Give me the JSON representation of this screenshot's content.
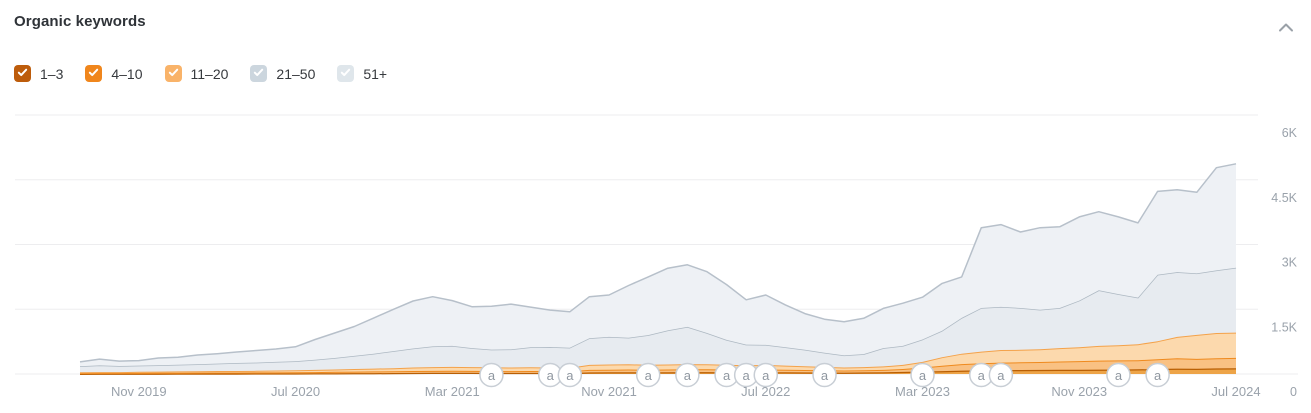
{
  "header": {
    "title": "Organic keywords",
    "collapse_icon": "chevron-up"
  },
  "legend": {
    "items": [
      {
        "key": "1-3",
        "label": "1–3",
        "color": "#bd5c0b",
        "checked": true
      },
      {
        "key": "4-10",
        "label": "4–10",
        "color": "#f0861c",
        "checked": true
      },
      {
        "key": "11-20",
        "label": "11–20",
        "color": "#f9b369",
        "checked": true
      },
      {
        "key": "21-50",
        "label": "21–50",
        "color": "#ccd6de",
        "checked": true
      },
      {
        "key": "51plus",
        "label": "51+",
        "color": "#dfe6eb",
        "checked": true
      }
    ]
  },
  "chart_data": {
    "type": "area",
    "stacked": true,
    "note": "Stacked area of organic keyword counts by ranking position. Series values below are cumulative stack-top values (keywords), monthly from Aug 2019 to Jul 2024.",
    "x_range": {
      "start": "Aug 2019",
      "end": "Jul 2024",
      "interval": "monthly",
      "points": 60
    },
    "ylim": [
      0,
      6000
    ],
    "grid": true,
    "legend_position": "top-left",
    "axes": {
      "y_ticks": [
        {
          "value": 0,
          "label": "0"
        },
        {
          "value": 1500,
          "label": "1.5K"
        },
        {
          "value": 3000,
          "label": "3K"
        },
        {
          "value": 4500,
          "label": "4.5K"
        },
        {
          "value": 6000,
          "label": "6K"
        }
      ],
      "x_ticks": [
        {
          "index": 3,
          "label": "Nov 2019"
        },
        {
          "index": 11,
          "label": "Jul 2020"
        },
        {
          "index": 19,
          "label": "Mar 2021"
        },
        {
          "index": 27,
          "label": "Nov 2021"
        },
        {
          "index": 35,
          "label": "Jul 2022"
        },
        {
          "index": 43,
          "label": "Mar 2023"
        },
        {
          "index": 51,
          "label": "Nov 2023"
        },
        {
          "index": 59,
          "label": "Jul 2024"
        }
      ]
    },
    "series": [
      {
        "key": "1-3",
        "name": "1–3",
        "fill": "#eda448",
        "line": "#b95f04",
        "line_width": 2.5,
        "cumulative_top": [
          8,
          9,
          9,
          10,
          10,
          11,
          11,
          12,
          12,
          13,
          13,
          14,
          16,
          18,
          20,
          22,
          24,
          26,
          27,
          28,
          27,
          26,
          25,
          26,
          25,
          24,
          38,
          40,
          42,
          40,
          42,
          44,
          43,
          42,
          40,
          42,
          39,
          37,
          35,
          33,
          36,
          40,
          48,
          58,
          68,
          78,
          85,
          90,
          92,
          95,
          98,
          100,
          103,
          105,
          108,
          118,
          126,
          122,
          130,
          135
        ]
      },
      {
        "key": "4-10",
        "name": "4–10",
        "fill": "#f9c183",
        "line": "#ef8a1e",
        "line_width": 2,
        "cumulative_top": [
          22,
          24,
          25,
          26,
          28,
          30,
          32,
          34,
          35,
          36,
          38,
          40,
          45,
          50,
          55,
          60,
          65,
          70,
          72,
          74,
          72,
          70,
          68,
          70,
          68,
          66,
          95,
          100,
          105,
          100,
          105,
          110,
          108,
          105,
          100,
          105,
          98,
          92,
          86,
          80,
          85,
          95,
          115,
          150,
          190,
          230,
          250,
          265,
          270,
          278,
          290,
          300,
          310,
          315,
          320,
          340,
          365,
          350,
          365,
          372
        ]
      },
      {
        "key": "11-20",
        "name": "11–20",
        "fill": "#fcd9ad",
        "line": "#f4a24a",
        "line_width": 2,
        "cumulative_top": [
          40,
          45,
          45,
          50,
          55,
          60,
          65,
          70,
          70,
          75,
          80,
          85,
          95,
          105,
          115,
          125,
          135,
          150,
          160,
          165,
          160,
          155,
          150,
          155,
          150,
          145,
          210,
          220,
          225,
          215,
          220,
          230,
          225,
          215,
          205,
          210,
          195,
          180,
          165,
          150,
          160,
          175,
          210,
          280,
          390,
          470,
          520,
          555,
          560,
          575,
          600,
          620,
          650,
          665,
          690,
          760,
          860,
          905,
          950,
          960
        ]
      },
      {
        "key": "21-50",
        "name": "21–50",
        "fill": "#e7ebf0",
        "line": "#adb8c2",
        "line_width": 1.5,
        "cumulative_top": [
          180,
          200,
          185,
          195,
          205,
          215,
          225,
          240,
          255,
          265,
          280,
          295,
          330,
          370,
          420,
          470,
          530,
          590,
          640,
          650,
          600,
          565,
          570,
          620,
          625,
          610,
          830,
          860,
          840,
          900,
          1010,
          1090,
          950,
          790,
          680,
          675,
          620,
          560,
          490,
          430,
          460,
          600,
          650,
          800,
          1000,
          1300,
          1530,
          1555,
          1530,
          1490,
          1530,
          1700,
          1940,
          1850,
          1770,
          2300,
          2360,
          2330,
          2400,
          2460
        ]
      },
      {
        "key": "51plus",
        "name": "51+",
        "fill": "#eef1f5",
        "line": "#b7c0ca",
        "line_width": 1.5,
        "cumulative_top": [
          280,
          345,
          300,
          310,
          370,
          390,
          440,
          470,
          510,
          545,
          580,
          630,
          800,
          950,
          1100,
          1300,
          1500,
          1690,
          1790,
          1700,
          1560,
          1570,
          1620,
          1550,
          1480,
          1440,
          1790,
          1830,
          2050,
          2250,
          2450,
          2530,
          2370,
          2070,
          1720,
          1830,
          1600,
          1400,
          1270,
          1210,
          1290,
          1520,
          1640,
          1780,
          2100,
          2250,
          3390,
          3460,
          3290,
          3390,
          3410,
          3640,
          3760,
          3640,
          3500,
          4230,
          4270,
          4210,
          4780,
          4870
        ]
      }
    ],
    "annotations": {
      "glyph": "a",
      "month_indices": [
        21,
        24,
        25,
        29,
        31,
        33,
        34,
        35,
        38,
        43,
        46,
        47,
        53,
        55
      ]
    },
    "colors": {
      "grid": "#ededef",
      "axis_text": "#9aa2ab",
      "badge_border": "#c8ced5",
      "badge_text": "#8f97a0",
      "badge_fill": "#ffffff"
    }
  }
}
